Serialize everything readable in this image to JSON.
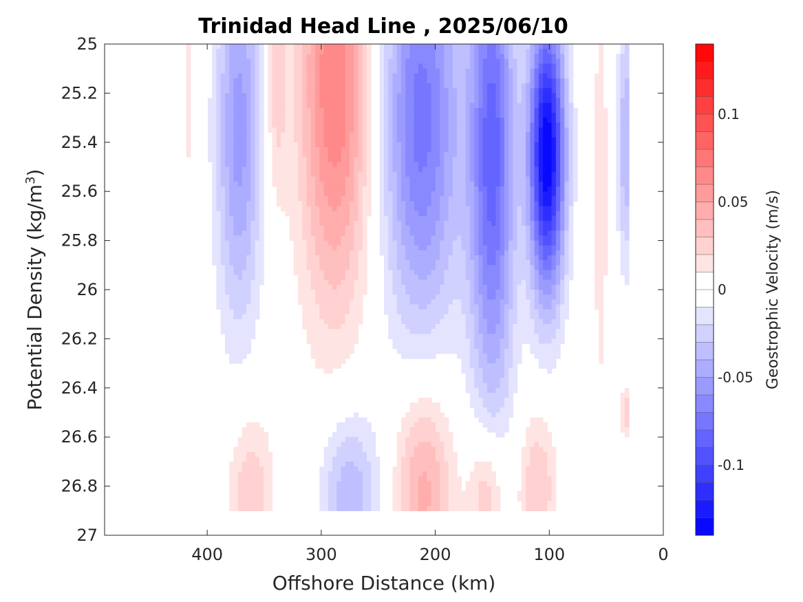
{
  "chart_data": {
    "type": "contourf",
    "title": "Trinidad Head Line , 2025/06/10",
    "xlabel": "Offshore Distance (km)",
    "ylabel": "Potential Density (kg/m",
    "ylabel_sup": "3",
    "ylabel_close": ")",
    "xlim": [
      490,
      0
    ],
    "ylim": [
      25,
      27
    ],
    "x_ticks": [
      400,
      300,
      200,
      100,
      0
    ],
    "x_tick_labels": [
      "400",
      "300",
      "200",
      "100",
      "0"
    ],
    "y_ticks": [
      25,
      25.2,
      25.4,
      25.6,
      25.8,
      26,
      26.2,
      26.4,
      26.6,
      26.8,
      27
    ],
    "y_tick_labels": [
      "25",
      "25.2",
      "25.4",
      "25.6",
      "25.8",
      "26",
      "26.2",
      "26.4",
      "26.6",
      "26.8",
      "27"
    ],
    "colorbar": {
      "label": "Geostrophic Velocity (m/s)",
      "range": [
        -0.14,
        0.14
      ],
      "levels": 28,
      "ticks": [
        0.1,
        0.05,
        0,
        -0.05,
        -0.1
      ],
      "tick_labels": [
        "0.1",
        "0.05",
        "0",
        "-0.05",
        "-0.1"
      ],
      "neg_color": "#0000ff",
      "pos_color": "#ff0000",
      "zero_color": "#ffffff"
    },
    "features": [
      {
        "x": 372,
        "y": 25.35,
        "sx": 14,
        "sy": 0.55,
        "v": -0.055
      },
      {
        "x": 418,
        "y": 25.0,
        "sx": 3,
        "sy": 0.45,
        "v": 0.02
      },
      {
        "x": 340,
        "y": 25.15,
        "sx": 7,
        "sy": 0.35,
        "v": 0.025
      },
      {
        "x": 288,
        "y": 25.15,
        "sx": 22,
        "sy": 0.65,
        "v": 0.07
      },
      {
        "x": 212,
        "y": 25.3,
        "sx": 24,
        "sy": 0.6,
        "v": -0.075
      },
      {
        "x": 150,
        "y": 25.45,
        "sx": 14,
        "sy": 0.7,
        "v": -0.085
      },
      {
        "x": 102,
        "y": 25.45,
        "sx": 11,
        "sy": 0.4,
        "v": -0.14
      },
      {
        "x": 33,
        "y": 25.4,
        "sx": 5,
        "sy": 0.35,
        "v": -0.04
      },
      {
        "x": 55,
        "y": 25.6,
        "sx": 4,
        "sy": 0.6,
        "v": 0.02
      },
      {
        "x": 362,
        "y": 26.85,
        "sx": 14,
        "sy": 0.25,
        "v": 0.03
      },
      {
        "x": 275,
        "y": 26.85,
        "sx": 18,
        "sy": 0.25,
        "v": -0.04
      },
      {
        "x": 210,
        "y": 26.8,
        "sx": 18,
        "sy": 0.3,
        "v": 0.045
      },
      {
        "x": 155,
        "y": 26.85,
        "sx": 11,
        "sy": 0.2,
        "v": 0.035
      },
      {
        "x": 110,
        "y": 26.8,
        "sx": 12,
        "sy": 0.22,
        "v": 0.03
      },
      {
        "x": 32,
        "y": 26.5,
        "sx": 4,
        "sy": 0.08,
        "v": 0.025
      }
    ]
  }
}
